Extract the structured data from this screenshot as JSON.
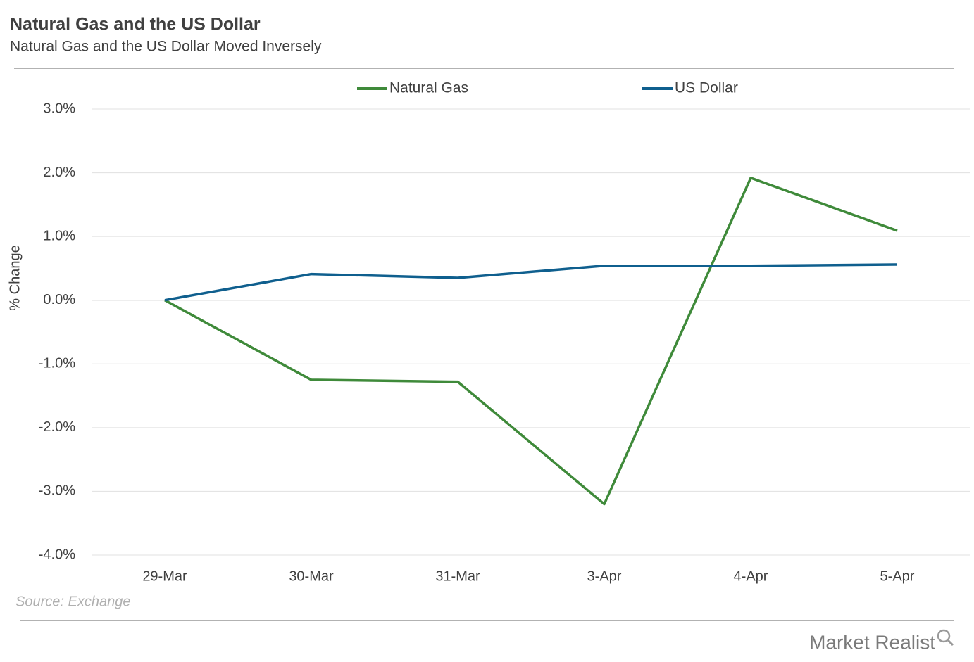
{
  "chart_data": {
    "type": "line",
    "title": "Natural Gas and the US Dollar",
    "subtitle": "Natural Gas and the US Dollar Moved Inversely",
    "y_label": "% Change",
    "source": "Source: Exchange",
    "categories": [
      "29-Mar",
      "30-Mar",
      "31-Mar",
      "3-Apr",
      "4-Apr",
      "5-Apr"
    ],
    "series": [
      {
        "name": "Natural Gas",
        "color": "#3f8a3a",
        "values": [
          0,
          -1.25,
          -1.28,
          -3.2,
          1.92,
          1.09
        ]
      },
      {
        "name": "US Dollar",
        "color": "#0f5f8e",
        "values": [
          0,
          0.41,
          0.35,
          0.54,
          0.54,
          0.56
        ]
      }
    ],
    "ylim": [
      -4,
      3
    ],
    "yticks": [
      {
        "value": -4,
        "label": "-4.0%"
      },
      {
        "value": -3,
        "label": "-3.0%"
      },
      {
        "value": -2,
        "label": "-2.0%"
      },
      {
        "value": -1,
        "label": "-1.0%"
      },
      {
        "value": 0,
        "label": "0.0%"
      },
      {
        "value": 1,
        "label": "1.0%"
      },
      {
        "value": 2,
        "label": "2.0%"
      },
      {
        "value": 3,
        "label": "3.0%"
      }
    ],
    "grid": true,
    "legend": "top"
  },
  "branding": "Market Realist"
}
